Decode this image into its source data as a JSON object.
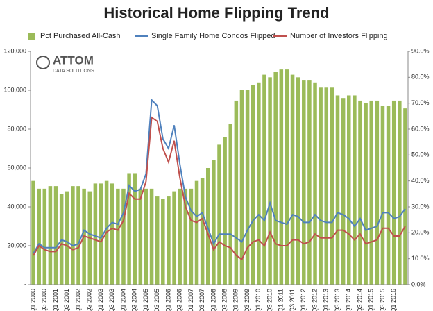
{
  "logo": {
    "name": "ATTOM",
    "tagline": "DATA SOLUTIONS"
  },
  "chart_data": {
    "type": "bar-line",
    "title": "Historical Home Flipping Trend",
    "categories": [
      "Q1 2000",
      null,
      "Q3 2000",
      null,
      "Q1 2001",
      null,
      "Q3 2001",
      null,
      "Q1 2002",
      null,
      "Q3 2002",
      null,
      "Q1 2003",
      null,
      "Q3 2003",
      null,
      "Q1 2004",
      null,
      "Q3 2004",
      null,
      "Q1 2005",
      null,
      "Q3 2005",
      null,
      "Q1 2006",
      null,
      "Q3 2006",
      null,
      "Q1 2007",
      null,
      "Q3 2007",
      null,
      "Q1 2008",
      null,
      "Q3 2008",
      null,
      "Q1 2009",
      null,
      "Q3 2009",
      null,
      "Q1 2010",
      null,
      "Q3 2010",
      null,
      "Q1 2011",
      null,
      "Q3 2011",
      null,
      "Q1 2012",
      null,
      "Q3 2012",
      null,
      "Q1 2013",
      null,
      "Q3 2013",
      null,
      "Q1 2014",
      null,
      "Q3 2014",
      null,
      "Q1 2015",
      null,
      "Q3 2015",
      null,
      "Q1 2016",
      null,
      null
    ],
    "series": [
      {
        "name": "Pct Purchased All-Cash",
        "type": "bar",
        "axis": "y2",
        "color": "#9bbb59",
        "values": [
          40,
          37,
          37,
          38,
          38,
          35,
          36,
          38,
          38,
          37,
          36,
          39,
          39,
          40,
          39,
          37,
          37,
          43,
          43,
          37,
          37,
          37,
          34,
          33,
          34,
          36,
          37,
          37,
          37,
          40,
          41,
          45,
          48,
          54,
          57,
          62,
          71,
          75,
          75,
          77,
          78,
          81,
          80,
          82,
          83,
          83,
          81,
          80,
          79,
          79,
          78,
          76,
          76,
          76,
          73,
          72,
          73,
          73,
          71,
          70,
          71,
          71,
          69,
          69,
          71,
          71,
          68
        ]
      },
      {
        "name": "Single Family Home Condos Flipped",
        "type": "line",
        "color": "#4f81bd",
        "values": [
          16000,
          21000,
          19000,
          19000,
          19000,
          23000,
          22000,
          20000,
          21000,
          28000,
          26000,
          25000,
          24000,
          29000,
          32000,
          31000,
          37000,
          51000,
          48000,
          49000,
          57000,
          95000,
          92000,
          75000,
          70000,
          82000,
          62000,
          45000,
          38000,
          35000,
          37000,
          29000,
          21000,
          26000,
          26000,
          26000,
          24000,
          22000,
          28000,
          33000,
          36000,
          33000,
          42000,
          33000,
          32000,
          31000,
          36000,
          35000,
          32000,
          32000,
          36000,
          33000,
          32000,
          32000,
          37000,
          36000,
          34000,
          30000,
          34000,
          28000,
          29000,
          30000,
          37000,
          37000,
          34000,
          35000,
          39000
        ]
      },
      {
        "name": "Number of Investors Flipping",
        "type": "line",
        "color": "#c0504d",
        "values": [
          15000,
          20000,
          18000,
          17000,
          17000,
          21000,
          20000,
          18000,
          19000,
          25000,
          24000,
          23000,
          22000,
          27000,
          29000,
          28000,
          33000,
          47000,
          44000,
          44000,
          53000,
          86000,
          84000,
          70000,
          63000,
          74000,
          55000,
          40000,
          33000,
          32000,
          34000,
          26000,
          18000,
          22000,
          20000,
          19000,
          15000,
          13000,
          19000,
          22000,
          23000,
          20000,
          27000,
          21000,
          20000,
          20000,
          23000,
          23000,
          21000,
          22000,
          26000,
          24000,
          24000,
          24000,
          28000,
          28000,
          26000,
          23000,
          26000,
          21000,
          22000,
          23000,
          29000,
          29000,
          25000,
          25000,
          30000
        ]
      }
    ],
    "ylim": [
      0,
      120000
    ],
    "yticks": [
      {
        "value": 0,
        "label": "-"
      },
      {
        "value": 20000,
        "label": "20,000"
      },
      {
        "value": 40000,
        "label": "40,000"
      },
      {
        "value": 60000,
        "label": "60,000"
      },
      {
        "value": 80000,
        "label": "80,000"
      },
      {
        "value": 100000,
        "label": "100,000"
      },
      {
        "value": 120000,
        "label": "120,000"
      }
    ],
    "y2lim": [
      0,
      90
    ],
    "y2ticks": [
      {
        "value": 0,
        "label": "0.0%"
      },
      {
        "value": 10,
        "label": "10.0%"
      },
      {
        "value": 20,
        "label": "20.0%"
      },
      {
        "value": 30,
        "label": "30.0%"
      },
      {
        "value": 40,
        "label": "40.0%"
      },
      {
        "value": 50,
        "label": "50.0%"
      },
      {
        "value": 60,
        "label": "60.0%"
      },
      {
        "value": 70,
        "label": "70.0%"
      },
      {
        "value": 80,
        "label": "80.0%"
      },
      {
        "value": 90,
        "label": "90.0%"
      }
    ],
    "grid": false,
    "legend": "top"
  }
}
